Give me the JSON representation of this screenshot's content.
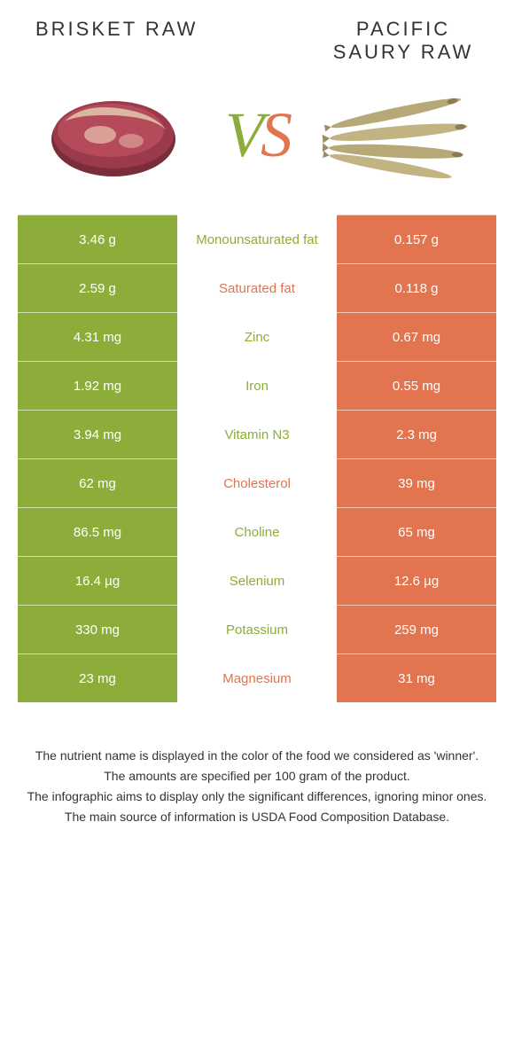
{
  "colors": {
    "left_bg": "#8dad3a",
    "right_bg": "#e2744f",
    "left_text": "#8dad3a",
    "right_text": "#e2744f",
    "row_border": "#ffffff"
  },
  "header": {
    "left_title": "BRISKET RAW",
    "right_title": "PACIFIC SAURY RAW",
    "vs_v": "V",
    "vs_s": "S"
  },
  "table": {
    "rows": [
      {
        "left": "3.46 g",
        "label": "Monounsaturated fat",
        "right": "0.157 g",
        "winner": "left"
      },
      {
        "left": "2.59 g",
        "label": "Saturated fat",
        "right": "0.118 g",
        "winner": "right"
      },
      {
        "left": "4.31 mg",
        "label": "Zinc",
        "right": "0.67 mg",
        "winner": "left"
      },
      {
        "left": "1.92 mg",
        "label": "Iron",
        "right": "0.55 mg",
        "winner": "left"
      },
      {
        "left": "3.94 mg",
        "label": "Vitamin N3",
        "right": "2.3 mg",
        "winner": "left"
      },
      {
        "left": "62 mg",
        "label": "Cholesterol",
        "right": "39 mg",
        "winner": "right"
      },
      {
        "left": "86.5 mg",
        "label": "Choline",
        "right": "65 mg",
        "winner": "left"
      },
      {
        "left": "16.4 µg",
        "label": "Selenium",
        "right": "12.6 µg",
        "winner": "left"
      },
      {
        "left": "330 mg",
        "label": "Potassium",
        "right": "259 mg",
        "winner": "left"
      },
      {
        "left": "23 mg",
        "label": "Magnesium",
        "right": "31 mg",
        "winner": "right"
      }
    ]
  },
  "footer": {
    "line1": "The nutrient name is displayed in the color of the food we considered as 'winner'.",
    "line2": "The amounts are specified per 100 gram of the product.",
    "line3": "The infographic aims to display only the significant differences, ignoring minor ones.",
    "line4": "The main source of information is USDA Food Composition Database."
  }
}
